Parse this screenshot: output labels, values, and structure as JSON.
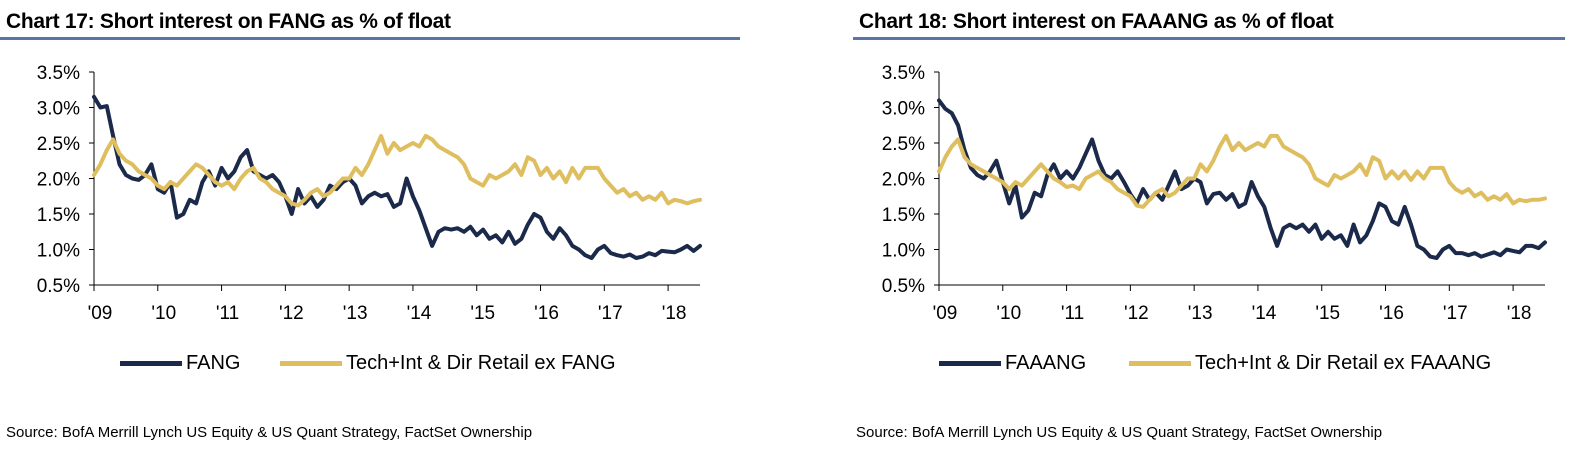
{
  "colors": {
    "series_dark": "#1b2a4a",
    "series_gold": "#dfbe5f",
    "title_rule": "#5b76a6"
  },
  "chart_data": [
    {
      "type": "line",
      "title": "Chart 17: Short interest on FANG as % of float",
      "source": "Source:  BofA Merrill Lynch US Equity & US Quant Strategy, FactSet Ownership",
      "xlabel": "",
      "ylabel": "",
      "ylim": [
        0.5,
        3.5
      ],
      "xlim": [
        2009.0,
        2018.5
      ],
      "y_ticks": [
        0.5,
        1.0,
        1.5,
        2.0,
        2.5,
        3.0,
        3.5
      ],
      "y_tick_labels": [
        "0.5%",
        "1.0%",
        "1.5%",
        "2.0%",
        "2.5%",
        "3.0%",
        "3.5%"
      ],
      "x_ticks": [
        2009,
        2010,
        2011,
        2012,
        2013,
        2014,
        2015,
        2016,
        2017,
        2018
      ],
      "x_tick_labels": [
        "'09",
        "'10",
        "'11",
        "'12",
        "'13",
        "'14",
        "'15",
        "'16",
        "'17",
        "'18"
      ],
      "series": [
        {
          "name": "FANG",
          "color": "#1b2a4a",
          "x": [
            2009.0,
            2009.1,
            2009.2,
            2009.3,
            2009.4,
            2009.5,
            2009.6,
            2009.7,
            2009.8,
            2009.9,
            2010.0,
            2010.1,
            2010.2,
            2010.3,
            2010.4,
            2010.5,
            2010.6,
            2010.7,
            2010.8,
            2010.9,
            2011.0,
            2011.1,
            2011.2,
            2011.3,
            2011.4,
            2011.5,
            2011.6,
            2011.7,
            2011.8,
            2011.9,
            2012.0,
            2012.1,
            2012.2,
            2012.3,
            2012.4,
            2012.5,
            2012.6,
            2012.7,
            2012.8,
            2012.9,
            2013.0,
            2013.1,
            2013.2,
            2013.3,
            2013.4,
            2013.5,
            2013.6,
            2013.7,
            2013.8,
            2013.9,
            2014.0,
            2014.1,
            2014.2,
            2014.3,
            2014.4,
            2014.5,
            2014.6,
            2014.7,
            2014.8,
            2014.9,
            2015.0,
            2015.1,
            2015.2,
            2015.3,
            2015.4,
            2015.5,
            2015.6,
            2015.7,
            2015.8,
            2015.9,
            2016.0,
            2016.1,
            2016.2,
            2016.3,
            2016.4,
            2016.5,
            2016.6,
            2016.7,
            2016.8,
            2016.9,
            2017.0,
            2017.1,
            2017.2,
            2017.3,
            2017.4,
            2017.5,
            2017.6,
            2017.7,
            2017.8,
            2017.9,
            2018.0,
            2018.1,
            2018.2,
            2018.3,
            2018.4,
            2018.5
          ],
          "values": [
            3.15,
            3.0,
            3.02,
            2.6,
            2.2,
            2.05,
            2.0,
            1.98,
            2.05,
            2.2,
            1.85,
            1.8,
            1.95,
            1.45,
            1.5,
            1.7,
            1.65,
            1.95,
            2.1,
            1.9,
            2.15,
            2.0,
            2.1,
            2.3,
            2.4,
            2.1,
            2.05,
            2.0,
            2.05,
            1.95,
            1.75,
            1.5,
            1.85,
            1.65,
            1.75,
            1.6,
            1.7,
            1.9,
            1.85,
            1.95,
            2.0,
            1.9,
            1.65,
            1.75,
            1.8,
            1.75,
            1.78,
            1.6,
            1.65,
            2.0,
            1.75,
            1.55,
            1.3,
            1.05,
            1.25,
            1.3,
            1.28,
            1.3,
            1.25,
            1.32,
            1.2,
            1.28,
            1.15,
            1.2,
            1.1,
            1.25,
            1.08,
            1.15,
            1.35,
            1.5,
            1.45,
            1.25,
            1.15,
            1.3,
            1.2,
            1.05,
            1.0,
            0.92,
            0.88,
            1.0,
            1.05,
            0.95,
            0.92,
            0.9,
            0.93,
            0.88,
            0.9,
            0.95,
            0.92,
            0.98,
            0.97,
            0.96,
            1.0,
            1.05,
            0.98,
            1.05
          ]
        },
        {
          "name": "Tech+Int & Dir Retail ex FANG",
          "color": "#dfbe5f",
          "x": [
            2009.0,
            2009.1,
            2009.2,
            2009.3,
            2009.4,
            2009.5,
            2009.6,
            2009.7,
            2009.8,
            2009.9,
            2010.0,
            2010.1,
            2010.2,
            2010.3,
            2010.4,
            2010.5,
            2010.6,
            2010.7,
            2010.8,
            2010.9,
            2011.0,
            2011.1,
            2011.2,
            2011.3,
            2011.4,
            2011.5,
            2011.6,
            2011.7,
            2011.8,
            2011.9,
            2012.0,
            2012.1,
            2012.2,
            2012.3,
            2012.4,
            2012.5,
            2012.6,
            2012.7,
            2012.8,
            2012.9,
            2013.0,
            2013.1,
            2013.2,
            2013.3,
            2013.4,
            2013.5,
            2013.6,
            2013.7,
            2013.8,
            2013.9,
            2014.0,
            2014.1,
            2014.2,
            2014.3,
            2014.4,
            2014.5,
            2014.6,
            2014.7,
            2014.8,
            2014.9,
            2015.0,
            2015.1,
            2015.2,
            2015.3,
            2015.4,
            2015.5,
            2015.6,
            2015.7,
            2015.8,
            2015.9,
            2016.0,
            2016.1,
            2016.2,
            2016.3,
            2016.4,
            2016.5,
            2016.6,
            2016.7,
            2016.8,
            2016.9,
            2017.0,
            2017.1,
            2017.2,
            2017.3,
            2017.4,
            2017.5,
            2017.6,
            2017.7,
            2017.8,
            2017.9,
            2018.0,
            2018.1,
            2018.2,
            2018.3,
            2018.4,
            2018.5
          ],
          "values": [
            2.05,
            2.2,
            2.4,
            2.55,
            2.35,
            2.25,
            2.2,
            2.1,
            2.05,
            2.0,
            1.9,
            1.85,
            1.95,
            1.9,
            2.0,
            2.1,
            2.2,
            2.15,
            2.05,
            1.95,
            1.9,
            1.95,
            1.85,
            2.0,
            2.1,
            2.15,
            2.0,
            1.95,
            1.85,
            1.8,
            1.75,
            1.65,
            1.62,
            1.7,
            1.8,
            1.85,
            1.75,
            1.8,
            1.9,
            2.0,
            2.0,
            2.15,
            2.05,
            2.2,
            2.4,
            2.6,
            2.35,
            2.5,
            2.4,
            2.45,
            2.5,
            2.45,
            2.6,
            2.55,
            2.45,
            2.4,
            2.35,
            2.3,
            2.2,
            2.0,
            1.95,
            1.9,
            2.05,
            2.0,
            2.05,
            2.1,
            2.2,
            2.05,
            2.3,
            2.25,
            2.05,
            2.15,
            2.0,
            2.1,
            1.95,
            2.15,
            2.0,
            2.15,
            2.15,
            2.15,
            2.0,
            1.9,
            1.8,
            1.85,
            1.75,
            1.8,
            1.7,
            1.75,
            1.7,
            1.8,
            1.65,
            1.7,
            1.68,
            1.65,
            1.68,
            1.7
          ]
        }
      ]
    },
    {
      "type": "line",
      "title": "Chart 18: Short interest on FAAANG as % of float",
      "source": "Source:  BofA Merrill Lynch US Equity & US Quant Strategy, FactSet Ownership",
      "xlabel": "",
      "ylabel": "",
      "ylim": [
        0.5,
        3.5
      ],
      "xlim": [
        2009.0,
        2018.5
      ],
      "y_ticks": [
        0.5,
        1.0,
        1.5,
        2.0,
        2.5,
        3.0,
        3.5
      ],
      "y_tick_labels": [
        "0.5%",
        "1.0%",
        "1.5%",
        "2.0%",
        "2.5%",
        "3.0%",
        "3.5%"
      ],
      "x_ticks": [
        2009,
        2010,
        2011,
        2012,
        2013,
        2014,
        2015,
        2016,
        2017,
        2018
      ],
      "x_tick_labels": [
        "'09",
        "'10",
        "'11",
        "'12",
        "'13",
        "'14",
        "'15",
        "'16",
        "'17",
        "'18"
      ],
      "series": [
        {
          "name": "FAAANG",
          "color": "#1b2a4a",
          "x": [
            2009.0,
            2009.1,
            2009.2,
            2009.3,
            2009.4,
            2009.5,
            2009.6,
            2009.7,
            2009.8,
            2009.9,
            2010.0,
            2010.1,
            2010.2,
            2010.3,
            2010.4,
            2010.5,
            2010.6,
            2010.7,
            2010.8,
            2010.9,
            2011.0,
            2011.1,
            2011.2,
            2011.3,
            2011.4,
            2011.5,
            2011.6,
            2011.7,
            2011.8,
            2011.9,
            2012.0,
            2012.1,
            2012.2,
            2012.3,
            2012.4,
            2012.5,
            2012.6,
            2012.7,
            2012.8,
            2012.9,
            2013.0,
            2013.1,
            2013.2,
            2013.3,
            2013.4,
            2013.5,
            2013.6,
            2013.7,
            2013.8,
            2013.9,
            2014.0,
            2014.1,
            2014.2,
            2014.3,
            2014.4,
            2014.5,
            2014.6,
            2014.7,
            2014.8,
            2014.9,
            2015.0,
            2015.1,
            2015.2,
            2015.3,
            2015.4,
            2015.5,
            2015.6,
            2015.7,
            2015.8,
            2015.9,
            2016.0,
            2016.1,
            2016.2,
            2016.3,
            2016.4,
            2016.5,
            2016.6,
            2016.7,
            2016.8,
            2016.9,
            2017.0,
            2017.1,
            2017.2,
            2017.3,
            2017.4,
            2017.5,
            2017.6,
            2017.7,
            2017.8,
            2017.9,
            2018.0,
            2018.1,
            2018.2,
            2018.3,
            2018.4,
            2018.5
          ],
          "values": [
            3.1,
            2.98,
            2.92,
            2.75,
            2.4,
            2.15,
            2.05,
            2.0,
            2.1,
            2.25,
            1.95,
            1.65,
            1.9,
            1.45,
            1.55,
            1.8,
            1.75,
            2.05,
            2.2,
            2.0,
            2.1,
            2.0,
            2.15,
            2.35,
            2.55,
            2.25,
            2.05,
            2.0,
            2.1,
            1.95,
            1.78,
            1.65,
            1.85,
            1.7,
            1.8,
            1.7,
            1.9,
            2.1,
            1.85,
            1.9,
            2.0,
            1.95,
            1.65,
            1.78,
            1.8,
            1.7,
            1.78,
            1.6,
            1.65,
            1.95,
            1.75,
            1.6,
            1.3,
            1.05,
            1.3,
            1.35,
            1.3,
            1.35,
            1.25,
            1.35,
            1.15,
            1.25,
            1.15,
            1.2,
            1.05,
            1.35,
            1.1,
            1.2,
            1.4,
            1.65,
            1.6,
            1.4,
            1.35,
            1.6,
            1.35,
            1.05,
            1.0,
            0.9,
            0.88,
            1.0,
            1.05,
            0.95,
            0.95,
            0.92,
            0.95,
            0.9,
            0.93,
            0.96,
            0.92,
            1.0,
            0.98,
            0.96,
            1.05,
            1.05,
            1.02,
            1.1
          ]
        },
        {
          "name": "Tech+Int & Dir Retail ex FAAANG",
          "color": "#dfbe5f",
          "x": [
            2009.0,
            2009.1,
            2009.2,
            2009.3,
            2009.4,
            2009.5,
            2009.6,
            2009.7,
            2009.8,
            2009.9,
            2010.0,
            2010.1,
            2010.2,
            2010.3,
            2010.4,
            2010.5,
            2010.6,
            2010.7,
            2010.8,
            2010.9,
            2011.0,
            2011.1,
            2011.2,
            2011.3,
            2011.4,
            2011.5,
            2011.6,
            2011.7,
            2011.8,
            2011.9,
            2012.0,
            2012.1,
            2012.2,
            2012.3,
            2012.4,
            2012.5,
            2012.6,
            2012.7,
            2012.8,
            2012.9,
            2013.0,
            2013.1,
            2013.2,
            2013.3,
            2013.4,
            2013.5,
            2013.6,
            2013.7,
            2013.8,
            2013.9,
            2014.0,
            2014.1,
            2014.2,
            2014.3,
            2014.4,
            2014.5,
            2014.6,
            2014.7,
            2014.8,
            2014.9,
            2015.0,
            2015.1,
            2015.2,
            2015.3,
            2015.4,
            2015.5,
            2015.6,
            2015.7,
            2015.8,
            2015.9,
            2016.0,
            2016.1,
            2016.2,
            2016.3,
            2016.4,
            2016.5,
            2016.6,
            2016.7,
            2016.8,
            2016.9,
            2017.0,
            2017.1,
            2017.2,
            2017.3,
            2017.4,
            2017.5,
            2017.6,
            2017.7,
            2017.8,
            2017.9,
            2018.0,
            2018.1,
            2018.2,
            2018.3,
            2018.4,
            2018.5
          ],
          "values": [
            2.1,
            2.3,
            2.45,
            2.55,
            2.3,
            2.2,
            2.15,
            2.1,
            2.05,
            2.0,
            1.95,
            1.85,
            1.95,
            1.9,
            2.0,
            2.1,
            2.2,
            2.1,
            2.0,
            1.95,
            1.88,
            1.9,
            1.85,
            2.0,
            2.05,
            2.1,
            2.0,
            1.95,
            1.85,
            1.8,
            1.75,
            1.62,
            1.6,
            1.7,
            1.8,
            1.85,
            1.75,
            1.8,
            1.9,
            2.0,
            2.0,
            2.2,
            2.1,
            2.25,
            2.45,
            2.6,
            2.4,
            2.5,
            2.4,
            2.45,
            2.5,
            2.45,
            2.6,
            2.6,
            2.45,
            2.4,
            2.35,
            2.3,
            2.2,
            2.0,
            1.95,
            1.9,
            2.05,
            2.0,
            2.05,
            2.1,
            2.2,
            2.05,
            2.3,
            2.25,
            2.0,
            2.1,
            2.0,
            2.1,
            1.98,
            2.1,
            2.0,
            2.15,
            2.15,
            2.15,
            1.95,
            1.85,
            1.8,
            1.85,
            1.75,
            1.8,
            1.7,
            1.75,
            1.7,
            1.78,
            1.65,
            1.7,
            1.68,
            1.7,
            1.7,
            1.72
          ]
        }
      ]
    }
  ]
}
